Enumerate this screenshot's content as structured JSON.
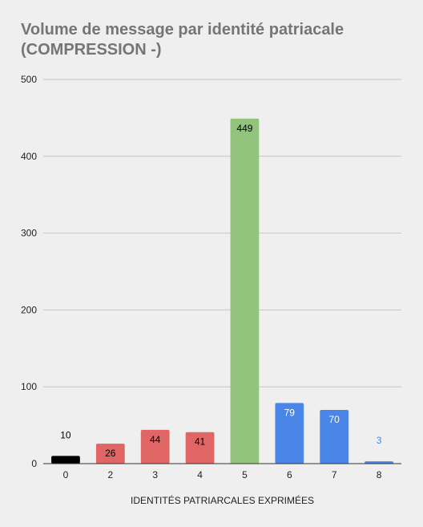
{
  "chart_data": {
    "type": "bar",
    "title_line1": "Volume de message par identité patriacale",
    "title_line2": "(COMPRESSION -)",
    "xlabel": "IDENTITÉS PATRIARCALES EXPRIMÉES",
    "ylabel": "",
    "categories": [
      "0",
      "2",
      "3",
      "4",
      "5",
      "6",
      "7",
      "8"
    ],
    "values": [
      10,
      26,
      44,
      41,
      449,
      79,
      70,
      3
    ],
    "colors": [
      "#000000",
      "#e06666",
      "#e06666",
      "#e06666",
      "#93c47d",
      "#4a86e8",
      "#4a86e8",
      "#4a86e8"
    ],
    "label_colors": [
      "#000000",
      "#000000",
      "#000000",
      "#000000",
      "#000000",
      "#ffffff",
      "#ffffff",
      "#4a86e8"
    ],
    "ylim": [
      0,
      500
    ],
    "yticks": [
      0,
      100,
      200,
      300,
      400,
      500
    ],
    "grid": true,
    "legend": "none"
  }
}
